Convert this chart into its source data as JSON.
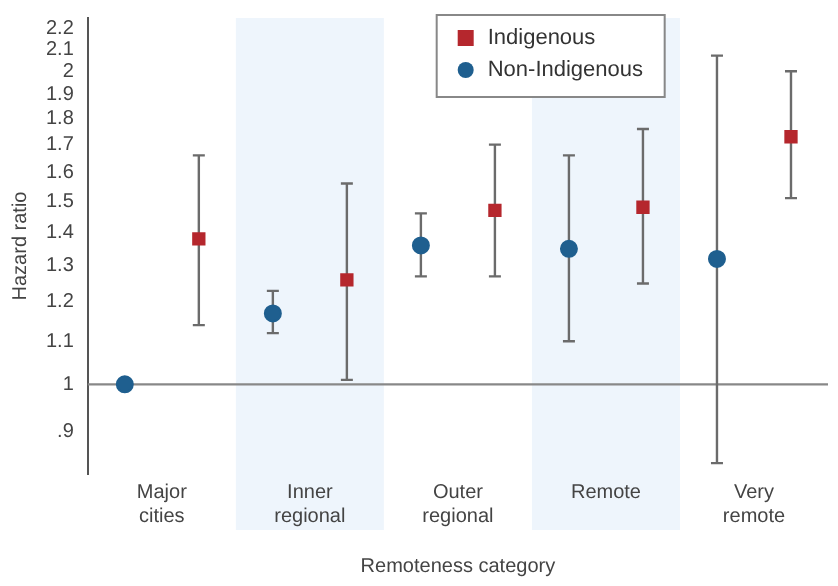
{
  "chart_data": {
    "type": "scatter",
    "xlabel": "Remoteness category",
    "ylabel": "Hazard ratio",
    "categories": [
      "Major cities",
      "Inner regional",
      "Outer regional",
      "Remote",
      "Very remote"
    ],
    "series": [
      {
        "name": "Non-Indigenous",
        "color": "#1f5f8f",
        "marker": "circle",
        "values": [
          1.0,
          1.17,
          1.36,
          1.35,
          1.32
        ],
        "errors": [
          null,
          [
            1.12,
            1.23
          ],
          [
            1.27,
            1.46
          ],
          [
            1.1,
            1.66
          ],
          [
            0.84,
            2.07
          ]
        ]
      },
      {
        "name": "Indigenous",
        "color": "#b5272d",
        "marker": "square",
        "values": [
          1.38,
          1.26,
          1.47,
          1.48,
          1.73
        ],
        "errors": [
          [
            1.14,
            1.66
          ],
          [
            1.01,
            1.56
          ],
          [
            1.27,
            1.7
          ],
          [
            1.25,
            1.76
          ],
          [
            1.51,
            2.0
          ]
        ]
      }
    ],
    "log": "y",
    "ylim": [
      0.82,
      2.25
    ],
    "yticks": [
      {
        "value": 0.9,
        "label": ".9"
      },
      1,
      1.1,
      1.2,
      1.3,
      1.4,
      1.5,
      1.6,
      1.7,
      1.8,
      1.9,
      2,
      2.1,
      2.2
    ],
    "ref_lines": [
      {
        "axis": "y",
        "value": 1,
        "color": "#888888"
      }
    ],
    "bands": [
      {
        "axis": "x",
        "from": "Inner regional",
        "to": "Inner regional",
        "color": "#eef5fc"
      },
      {
        "axis": "x",
        "from": "Remote",
        "to": "Remote",
        "color": "#eef5fc"
      }
    ],
    "grid": false,
    "legend": "top right"
  }
}
